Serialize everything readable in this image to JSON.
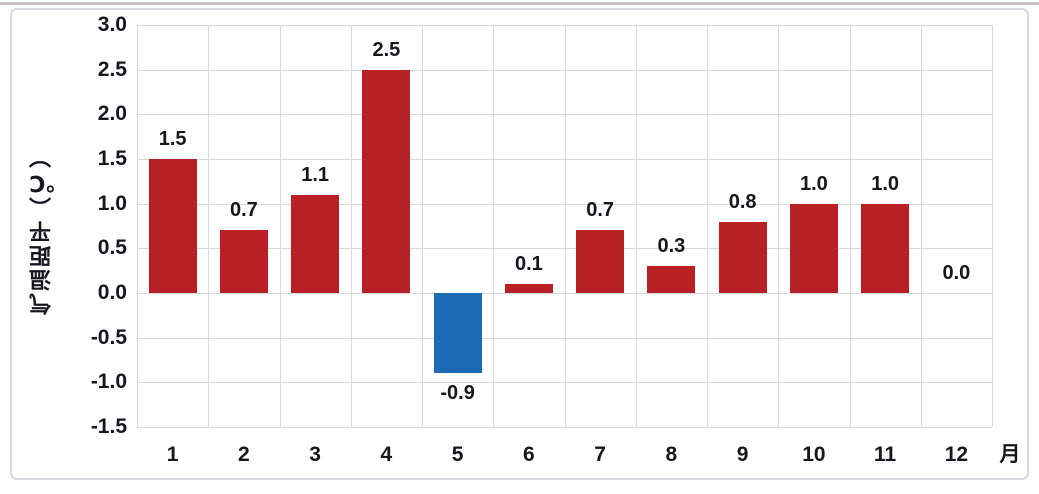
{
  "chart_data": {
    "type": "bar",
    "title": "",
    "ylabel": "气温距平（℃）",
    "xlabel": "月",
    "categories": [
      "1",
      "2",
      "3",
      "4",
      "5",
      "6",
      "7",
      "8",
      "9",
      "10",
      "11",
      "12"
    ],
    "values": [
      1.5,
      0.7,
      1.1,
      2.5,
      -0.9,
      0.1,
      0.7,
      0.3,
      0.8,
      1.0,
      1.0,
      0.0
    ],
    "value_labels": [
      "1.5",
      "0.7",
      "1.1",
      "2.5",
      "-0.9",
      "0.1",
      "0.7",
      "0.3",
      "0.8",
      "1.0",
      "1.0",
      "0.0"
    ],
    "ylim": [
      -1.5,
      3.0
    ],
    "ytick_step": 0.5,
    "y_ticks": [
      "3.0",
      "2.5",
      "2.0",
      "1.5",
      "1.0",
      "0.5",
      "0.0",
      "-0.5",
      "-1.0",
      "-1.5"
    ],
    "grid": true,
    "legend": null,
    "colors": {
      "positive_bar": "#B92026",
      "negative_bar": "#1B6CB5",
      "gridline": "#D7D9DB",
      "text": "#16161E",
      "card_border": "#D6DADE"
    }
  }
}
